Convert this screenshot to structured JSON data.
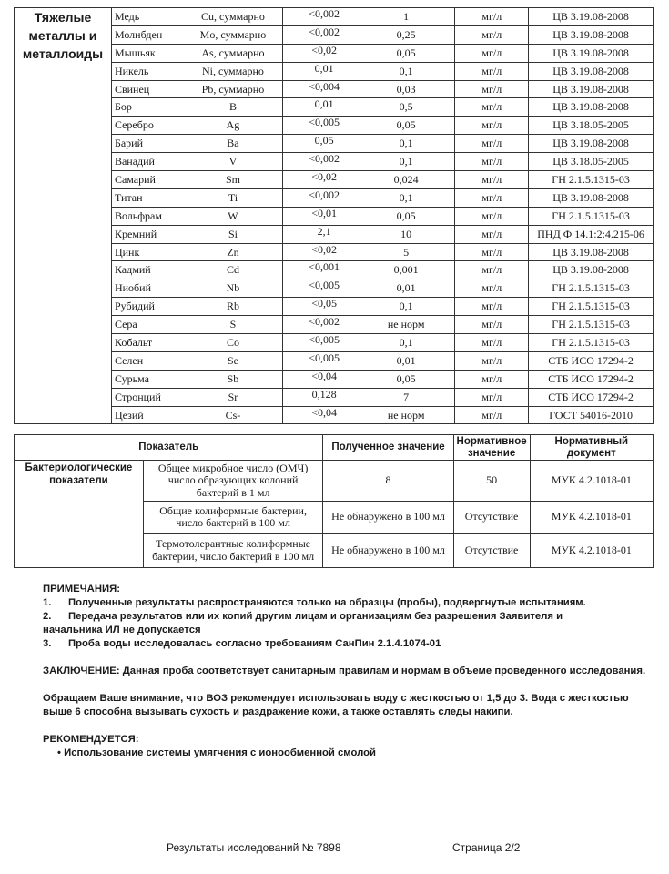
{
  "metals": {
    "group_label": "Тяжелые металлы и металлоиды",
    "rows": [
      {
        "name": "Медь",
        "symbol": "Cu, суммарно",
        "value": "<0,002",
        "norm": "1",
        "unit": "мг/л",
        "doc": "ЦВ 3.19.08-2008"
      },
      {
        "name": "Молибден",
        "symbol": "Mo, суммарно",
        "value": "<0,002",
        "norm": "0,25",
        "unit": "мг/л",
        "doc": "ЦВ 3.19.08-2008"
      },
      {
        "name": "Мышьяк",
        "symbol": "As, суммарно",
        "value": "<0,02",
        "norm": "0,05",
        "unit": "мг/л",
        "doc": "ЦВ 3.19.08-2008"
      },
      {
        "name": "Никель",
        "symbol": "Ni, суммарно",
        "value": "0,01",
        "norm": "0,1",
        "unit": "мг/л",
        "doc": "ЦВ 3.19.08-2008"
      },
      {
        "name": "Свинец",
        "symbol": "Pb, суммарно",
        "value": "<0,004",
        "norm": "0,03",
        "unit": "мг/л",
        "doc": "ЦВ 3.19.08-2008"
      },
      {
        "name": "Бор",
        "symbol": "B",
        "value": "0,01",
        "norm": "0,5",
        "unit": "мг/л",
        "doc": "ЦВ 3.19.08-2008"
      },
      {
        "name": "Серебро",
        "symbol": "Ag",
        "value": "<0,005",
        "norm": "0,05",
        "unit": "мг/л",
        "doc": "ЦВ 3.18.05-2005"
      },
      {
        "name": "Барий",
        "symbol": "Ba",
        "value": "0,05",
        "norm": "0,1",
        "unit": "мг/л",
        "doc": "ЦВ 3.19.08-2008"
      },
      {
        "name": "Ванадий",
        "symbol": "V",
        "value": "<0,002",
        "norm": "0,1",
        "unit": "мг/л",
        "doc": "ЦВ 3.18.05-2005"
      },
      {
        "name": "Самарий",
        "symbol": "Sm",
        "value": "<0,02",
        "norm": "0,024",
        "unit": "мг/л",
        "doc": "ГН 2.1.5.1315-03"
      },
      {
        "name": "Титан",
        "symbol": "Ti",
        "value": "<0,002",
        "norm": "0,1",
        "unit": "мг/л",
        "doc": "ЦВ 3.19.08-2008"
      },
      {
        "name": "Вольфрам",
        "symbol": "W",
        "value": "<0,01",
        "norm": "0,05",
        "unit": "мг/л",
        "doc": "ГН 2.1.5.1315-03"
      },
      {
        "name": "Кремний",
        "symbol": "Si",
        "value": "2,1",
        "norm": "10",
        "unit": "мг/л",
        "doc": "ПНД Ф 14.1:2:4.215-06"
      },
      {
        "name": "Цинк",
        "symbol": "Zn",
        "value": "<0,02",
        "norm": "5",
        "unit": "мг/л",
        "doc": "ЦВ 3.19.08-2008"
      },
      {
        "name": "Кадмий",
        "symbol": "Cd",
        "value": "<0,001",
        "norm": "0,001",
        "unit": "мг/л",
        "doc": "ЦВ 3.19.08-2008"
      },
      {
        "name": "Ниобий",
        "symbol": "Nb",
        "value": "<0,005",
        "norm": "0,01",
        "unit": "мг/л",
        "doc": "ГН 2.1.5.1315-03"
      },
      {
        "name": "Рубидий",
        "symbol": "Rb",
        "value": "<0,05",
        "norm": "0,1",
        "unit": "мг/л",
        "doc": "ГН 2.1.5.1315-03"
      },
      {
        "name": "Сера",
        "symbol": "S",
        "value": "<0,002",
        "norm": "не норм",
        "unit": "мг/л",
        "doc": "ГН 2.1.5.1315-03"
      },
      {
        "name": "Кобальт",
        "symbol": "Co",
        "value": "<0,005",
        "norm": "0,1",
        "unit": "мг/л",
        "doc": "ГН 2.1.5.1315-03"
      },
      {
        "name": "Селен",
        "symbol": "Se",
        "value": "<0,005",
        "norm": "0,01",
        "unit": "мг/л",
        "doc": "СТБ ИСО 17294-2"
      },
      {
        "name": "Сурьма",
        "symbol": "Sb",
        "value": "<0,04",
        "norm": "0,05",
        "unit": "мг/л",
        "doc": "СТБ ИСО 17294-2"
      },
      {
        "name": "Стронций",
        "symbol": "Sr",
        "value": "0,128",
        "norm": "7",
        "unit": "мг/л",
        "doc": "СТБ ИСО 17294-2"
      },
      {
        "name": "Цезий",
        "symbol": "Cs-",
        "value": "<0,04",
        "norm": "не норм",
        "unit": "мг/л",
        "doc": "ГОСТ 54016-2010"
      }
    ]
  },
  "bacteria": {
    "headers": {
      "indicator": "Показатель",
      "obtained": "Полученное значение",
      "normative": "Нормативное значение",
      "document": "Нормативный документ"
    },
    "group_label": "Бактериологические показатели",
    "rows": [
      {
        "name": "Общее микробное число (ОМЧ) число образующих колоний бактерий в 1 мл",
        "obtained": "8",
        "norm": "50",
        "doc": "МУК 4.2.1018-01"
      },
      {
        "name": "Общие колиформные бактерии, число бактерий в 100 мл",
        "obtained": "Не обнаружено в 100 мл",
        "norm": "Отсутствие",
        "doc": "МУК 4.2.1018-01"
      },
      {
        "name": "Термотолерантные колиформные бактерии, число бактерий в 100 мл",
        "obtained": "Не обнаружено в 100 мл",
        "norm": "Отсутствие",
        "doc": "МУК 4.2.1018-01"
      }
    ]
  },
  "notes": {
    "title": "ПРИМЕЧАНИЯ:",
    "items": [
      {
        "num": "1.",
        "text": "Полученные результаты распространяются только на образцы (пробы), подвергнутые испытаниям."
      },
      {
        "num": "2.",
        "text": "Передача результатов или их копий другим лицам и организациям без разрешения Заявителя и"
      },
      {
        "num": "",
        "text": "начальника ИЛ не допускается"
      },
      {
        "num": "3.",
        "text": "Проба воды исследовалась согласно требованиям СанПин 2.1.4.1074-01"
      }
    ],
    "conclusion": "ЗАКЛЮЧЕНИЕ: Данная проба соответствует санитарным правилам и нормам в объеме проведенного исследования.",
    "attention": "Обращаем Ваше внимание, что ВОЗ рекомендует использовать воду с жесткостью от 1,5 до 3. Вода с жесткостью выше 6 способна вызывать сухость и раздражение кожи, а также оставлять следы накипи.",
    "recommend_title": "РЕКОМЕНДУЕТСЯ:",
    "recommend_items": [
      "Использование системы умягчения с ионообменной смолой"
    ]
  },
  "footer": {
    "report": "Результаты исследований № 7898",
    "page": "Страница 2/2"
  }
}
